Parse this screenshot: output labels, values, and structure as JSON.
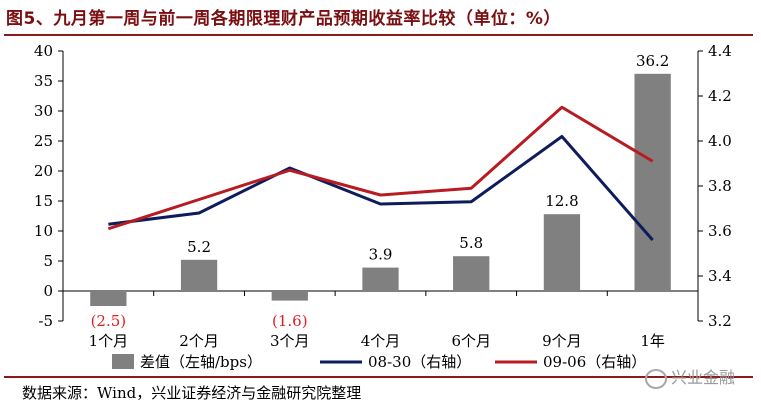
{
  "header": {
    "title": "图5、九月第一周与前一周各期限理财产品预期收益率比较（单位：%）"
  },
  "footer": {
    "source": "数据来源：Wind，兴业证券经济与金融研究院整理",
    "watermark": "兴业金融"
  },
  "chart_data": {
    "type": "bar",
    "categories": [
      "1个月",
      "2个月",
      "3个月",
      "4个月",
      "6个月",
      "9个月",
      "1年"
    ],
    "bar_series": {
      "name": "差值（左轴/bps）",
      "values": [
        -2.5,
        5.2,
        -1.6,
        3.9,
        5.8,
        12.8,
        36.2
      ],
      "data_labels": [
        "(2.5)",
        "5.2",
        "(1.6)",
        "3.9",
        "5.8",
        "12.8",
        "36.2"
      ],
      "color": "#808080"
    },
    "line_series": [
      {
        "name": "08-30（右轴）",
        "values": [
          3.63,
          3.68,
          3.88,
          3.72,
          3.73,
          4.02,
          3.56
        ],
        "color": "#0e1c5c"
      },
      {
        "name": "09-06（右轴）",
        "values": [
          3.61,
          3.74,
          3.87,
          3.76,
          3.79,
          4.15,
          3.91
        ],
        "color": "#b81c22"
      }
    ],
    "y_left": {
      "min": -5,
      "max": 40,
      "ticks": [
        -5,
        0,
        5,
        10,
        15,
        20,
        25,
        30,
        35,
        40
      ]
    },
    "y_right": {
      "min": 3.2,
      "max": 4.4,
      "ticks": [
        "3.2",
        "3.4",
        "3.6",
        "3.8",
        "4.0",
        "4.2",
        "4.4"
      ]
    },
    "negative_label_color": "#e02020",
    "legend_position": "bottom",
    "grid": false
  }
}
